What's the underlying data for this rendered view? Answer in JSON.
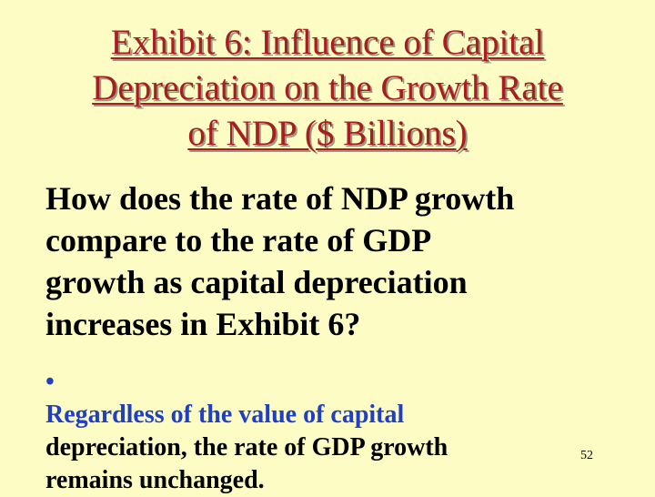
{
  "slide": {
    "title_lines": [
      "Exhibit 6: Influence of Capital",
      "Depreciation on the Growth Rate",
      "of NDP ($ Billions)"
    ],
    "question_lines": [
      "How does the rate of NDP growth",
      "compare to the rate of GDP",
      "growth as capital depreciation",
      "increases in Exhibit 6?"
    ],
    "answer": {
      "bullet": "•",
      "line1": "Regardless of the value of capital",
      "line2": "depreciation, the rate of GDP growth",
      "line3": "remains unchanged."
    },
    "page_number": "52"
  },
  "colors": {
    "background": "#fcfcc4",
    "title": "#a71e1e",
    "title_shadow": "#9a9a82",
    "answer_blue": "#1f3fc4",
    "body_text": "#000000"
  }
}
